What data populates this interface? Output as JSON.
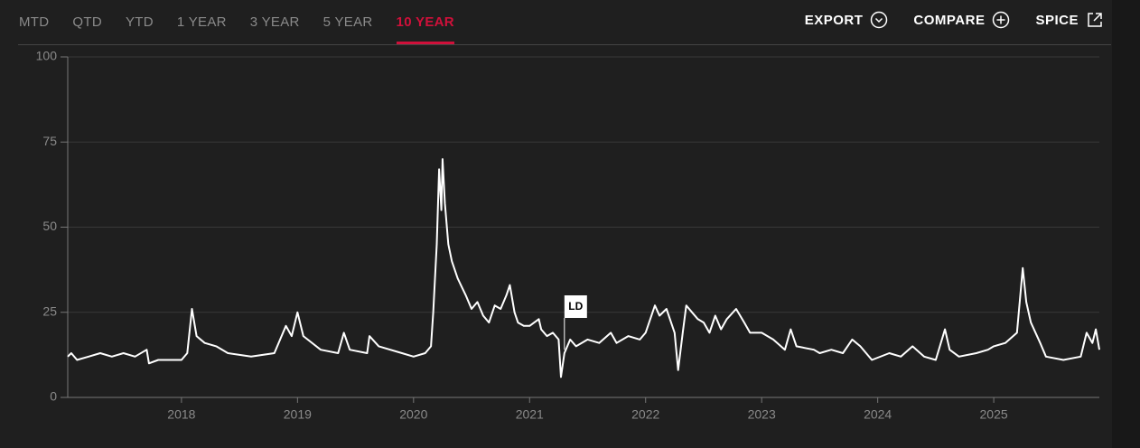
{
  "tabs": [
    "MTD",
    "QTD",
    "YTD",
    "1 YEAR",
    "3 YEAR",
    "5 YEAR",
    "10 YEAR"
  ],
  "active_tab": 6,
  "actions": [
    "EXPORT",
    "COMPARE",
    "SPICE"
  ],
  "chart_data": {
    "type": "line",
    "color": "#ffffff",
    "grid": true,
    "xlim": [
      2017.02,
      2025.91
    ],
    "xticks": [
      2018,
      2019,
      2020,
      2021,
      2022,
      2023,
      2024,
      2025
    ],
    "ylim": [
      0,
      100
    ],
    "yticks": [
      0,
      25,
      50,
      75,
      100
    ],
    "annotation": {
      "text": "LD",
      "x": 2021.3,
      "y": 14
    },
    "x": [
      2017.02,
      2017.05,
      2017.1,
      2017.2,
      2017.3,
      2017.4,
      2017.5,
      2017.6,
      2017.7,
      2017.72,
      2017.8,
      2017.9,
      2018.0,
      2018.05,
      2018.09,
      2018.13,
      2018.2,
      2018.3,
      2018.4,
      2018.6,
      2018.8,
      2018.85,
      2018.9,
      2018.95,
      2019.0,
      2019.05,
      2019.2,
      2019.35,
      2019.4,
      2019.45,
      2019.6,
      2019.62,
      2019.7,
      2019.9,
      2020.0,
      2020.1,
      2020.15,
      2020.17,
      2020.2,
      2020.22,
      2020.24,
      2020.25,
      2020.27,
      2020.3,
      2020.33,
      2020.38,
      2020.45,
      2020.5,
      2020.55,
      2020.6,
      2020.65,
      2020.7,
      2020.75,
      2020.8,
      2020.83,
      2020.87,
      2020.9,
      2020.95,
      2021.0,
      2021.08,
      2021.1,
      2021.15,
      2021.2,
      2021.25,
      2021.27,
      2021.3,
      2021.35,
      2021.4,
      2021.5,
      2021.6,
      2021.7,
      2021.75,
      2021.85,
      2021.95,
      2022.0,
      2022.08,
      2022.12,
      2022.18,
      2022.25,
      2022.28,
      2022.32,
      2022.35,
      2022.4,
      2022.45,
      2022.5,
      2022.55,
      2022.6,
      2022.65,
      2022.7,
      2022.78,
      2022.85,
      2022.9,
      2023.0,
      2023.1,
      2023.2,
      2023.25,
      2023.3,
      2023.45,
      2023.5,
      2023.6,
      2023.7,
      2023.78,
      2023.85,
      2023.95,
      2024.1,
      2024.2,
      2024.3,
      2024.4,
      2024.5,
      2024.58,
      2024.62,
      2024.7,
      2024.85,
      2024.95,
      2025.0,
      2025.1,
      2025.2,
      2025.25,
      2025.28,
      2025.32,
      2025.4,
      2025.45,
      2025.6,
      2025.75,
      2025.8,
      2025.85,
      2025.88,
      2025.91
    ],
    "values": [
      12,
      13,
      11,
      12,
      13,
      12,
      13,
      12,
      14,
      10,
      11,
      11,
      11,
      13,
      26,
      18,
      16,
      15,
      13,
      12,
      13,
      17,
      21,
      18,
      25,
      18,
      14,
      13,
      19,
      14,
      13,
      18,
      15,
      13,
      12,
      13,
      15,
      25,
      45,
      67,
      55,
      70,
      57,
      45,
      40,
      35,
      30,
      26,
      28,
      24,
      22,
      27,
      26,
      30,
      33,
      25,
      22,
      21,
      21,
      23,
      20,
      18,
      19,
      17,
      6,
      13,
      17,
      15,
      17,
      16,
      19,
      16,
      18,
      17,
      19,
      27,
      24,
      26,
      19,
      8,
      19,
      27,
      25,
      23,
      22,
      19,
      24,
      20,
      23,
      26,
      22,
      19,
      19,
      17,
      14,
      20,
      15,
      14,
      13,
      14,
      13,
      17,
      15,
      11,
      13,
      12,
      15,
      12,
      11,
      20,
      14,
      12,
      13,
      14,
      15,
      16,
      19,
      38,
      28,
      22,
      16,
      12,
      11,
      12,
      19,
      16,
      20,
      14
    ]
  }
}
